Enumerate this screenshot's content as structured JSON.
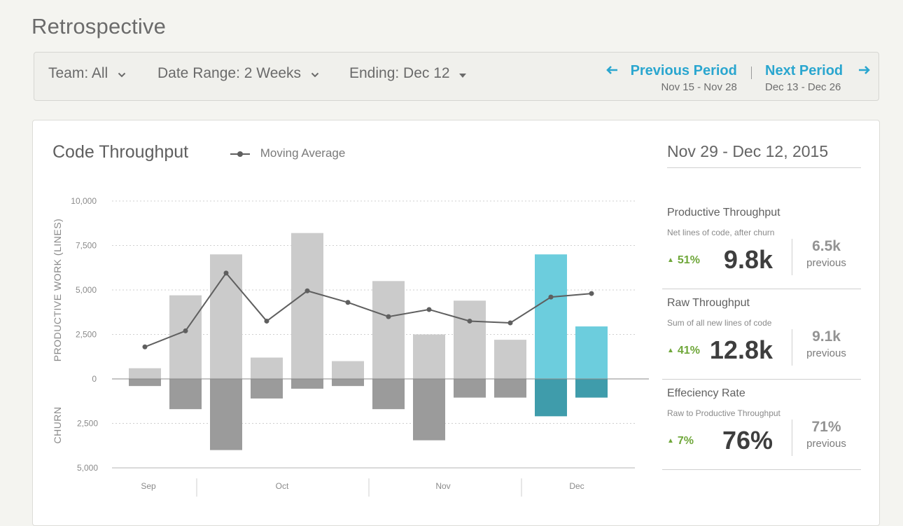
{
  "page": {
    "title": "Retrospective"
  },
  "filters": {
    "team": "Team: All",
    "date_range": "Date Range: 2 Weeks",
    "ending": "Ending: Dec 12"
  },
  "navigation": {
    "previous": {
      "label": "Previous Period",
      "range": "Nov 15 - Nov 28",
      "icon": "arrow-left-icon"
    },
    "next": {
      "label": "Next Period",
      "range": "Dec 13 - Dec 26",
      "icon": "arrow-right-icon"
    }
  },
  "card": {
    "title": "Code Throughput",
    "legend_label": "Moving Average",
    "period": "Nov 29 - Dec 12, 2015"
  },
  "metrics": [
    {
      "title": "Productive Throughput",
      "subtitle": "Net lines of code, after churn",
      "change": "51%",
      "value": "9.8k",
      "previous": "6.5k",
      "previous_label": "previous"
    },
    {
      "title": "Raw Throughput",
      "subtitle": "Sum of all new lines of code",
      "change": "41%",
      "value": "12.8k",
      "previous": "9.1k",
      "previous_label": "previous"
    },
    {
      "title": "Effeciency Rate",
      "subtitle": "Raw to Productive Throughput",
      "change": "7%",
      "value": "76%",
      "previous": "71%",
      "previous_label": "previous"
    }
  ],
  "colors": {
    "accent": "#2aa6cf",
    "positive": "#6fa73a",
    "bar_past": "#cbcbcb",
    "churn_past": "#9b9b9b",
    "bar_current": "#6ccddd",
    "churn_current": "#3f9cab",
    "line": "#5f5f5f"
  },
  "chart_data": {
    "type": "bar",
    "ylabel_top": "PRODUCTIVE WORK (LINES)",
    "ylabel_bottom": "CHURN",
    "productive_ticks": [
      "10,000",
      "7,500",
      "5,000",
      "2,500",
      "0"
    ],
    "churn_ticks": [
      "2,500",
      "5,000"
    ],
    "ylim_productive": [
      0,
      10000
    ],
    "ylim_churn": [
      0,
      5000
    ],
    "months": [
      "Sep",
      "Oct",
      "Nov",
      "Dec"
    ],
    "bars": [
      {
        "productive": 600,
        "churn": 400,
        "avg": 1800,
        "current": false
      },
      {
        "productive": 4700,
        "churn": 1700,
        "avg": 2700,
        "current": false
      },
      {
        "productive": 7000,
        "churn": 4000,
        "avg": 5950,
        "current": false
      },
      {
        "productive": 1200,
        "churn": 1100,
        "avg": 3250,
        "current": false
      },
      {
        "productive": 8200,
        "churn": 550,
        "avg": 4950,
        "current": false
      },
      {
        "productive": 1000,
        "churn": 400,
        "avg": 4300,
        "current": false
      },
      {
        "productive": 5500,
        "churn": 1700,
        "avg": 3500,
        "current": false
      },
      {
        "productive": 2500,
        "churn": 3450,
        "avg": 3900,
        "current": false
      },
      {
        "productive": 4400,
        "churn": 1050,
        "avg": 3250,
        "current": false
      },
      {
        "productive": 2200,
        "churn": 1050,
        "avg": 3150,
        "current": false
      },
      {
        "productive": 7000,
        "churn": 2100,
        "avg": 4600,
        "current": true
      },
      {
        "productive": 2950,
        "churn": 1050,
        "avg": 4800,
        "current": true
      }
    ]
  }
}
